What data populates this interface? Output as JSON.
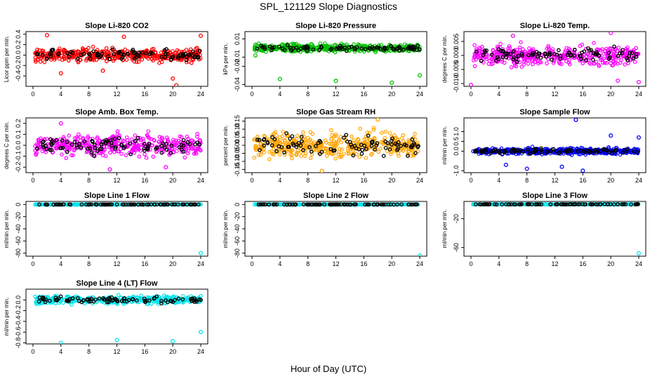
{
  "title": "SPL_121129  Slope Diagnostics",
  "xlabel": "Hour of Day (UTC)",
  "chart_data": [
    {
      "type": "scatter",
      "title": "Slope Li-820 CO2",
      "ylabel": "Licor ppm per min.",
      "yticks": [
        "-0.4",
        "-0.2",
        "0.0",
        "0.2",
        "0.4"
      ],
      "ytick_values": [
        -0.4,
        -0.2,
        0,
        0.2,
        0.4
      ],
      "ylim": [
        -0.6,
        0.45
      ],
      "xlim": [
        -1,
        25
      ],
      "xticks": [
        "0",
        "4",
        "8",
        "12",
        "16",
        "20",
        "24"
      ],
      "xtick_values": [
        0,
        4,
        8,
        12,
        16,
        20,
        24
      ],
      "color": "#ff0000",
      "spread": 0.12,
      "outliers": [
        [
          2,
          0.38
        ],
        [
          4,
          -0.35
        ],
        [
          10,
          -0.3
        ],
        [
          13,
          0.35
        ],
        [
          20,
          -0.45
        ],
        [
          24,
          0.37
        ],
        [
          20.5,
          -0.58
        ]
      ]
    },
    {
      "type": "scatter",
      "title": "Slope Li-820 Pressure",
      "ylabel": "kPa per min.",
      "yticks": [
        "-0.04",
        "-0.02",
        "-0.01",
        "0.01"
      ],
      "ytick_values": [
        -0.04,
        -0.02,
        -0.01,
        0.01
      ],
      "ylim": [
        -0.042,
        0.018
      ],
      "xlim": [
        -1,
        25
      ],
      "xticks": [
        "0",
        "4",
        "8",
        "12",
        "16",
        "20",
        "24"
      ],
      "xtick_values": [
        0,
        4,
        8,
        12,
        16,
        20,
        24
      ],
      "color": "#00c000",
      "spread": 0.004,
      "outliers": [
        [
          4,
          -0.034
        ],
        [
          12,
          -0.036
        ],
        [
          20,
          -0.038
        ],
        [
          24,
          -0.03
        ],
        [
          0.5,
          -0.008
        ]
      ]
    },
    {
      "type": "scatter",
      "title": "Slope Li-820 Temp.",
      "ylabel": "degrees C per min.",
      "yticks": [
        "-0.010",
        "-0.005",
        "0.000",
        "0.005"
      ],
      "ytick_values": [
        -0.01,
        -0.005,
        0,
        0.005
      ],
      "ylim": [
        -0.011,
        0.0085
      ],
      "xlim": [
        -1,
        25
      ],
      "xticks": [
        "0",
        "4",
        "8",
        "12",
        "16",
        "20",
        "24"
      ],
      "xtick_values": [
        0,
        4,
        8,
        12,
        16,
        20,
        24
      ],
      "color": "#ff00ff",
      "spread": 0.0032,
      "outliers": [
        [
          0,
          -0.0105
        ],
        [
          6,
          0.007
        ],
        [
          20,
          0.008
        ],
        [
          21,
          -0.009
        ],
        [
          24,
          -0.0095
        ]
      ]
    },
    {
      "type": "scatter",
      "title": "Slope Amb. Box Temp.",
      "ylabel": "degrees C per min.",
      "yticks": [
        "-0.2",
        "-0.1",
        "0.0",
        "0.1",
        "0.2"
      ],
      "ytick_values": [
        -0.2,
        -0.1,
        0,
        0.1,
        0.2
      ],
      "ylim": [
        -0.25,
        0.25
      ],
      "xlim": [
        -1,
        25
      ],
      "xticks": [
        "0",
        "4",
        "8",
        "12",
        "16",
        "20",
        "24"
      ],
      "xtick_values": [
        0,
        4,
        8,
        12,
        16,
        20,
        24
      ],
      "color": "#ff00ff",
      "spread": 0.09,
      "outliers": [
        [
          11,
          -0.22
        ],
        [
          4,
          0.2
        ],
        [
          19,
          -0.2
        ]
      ]
    },
    {
      "type": "scatter",
      "title": "Slope Gas Stream RH",
      "ylabel": "percent per min.",
      "yticks": [
        "-0.15",
        "-0.10",
        "-0.05",
        "0.00",
        "0.05",
        "0.10",
        "0.15"
      ],
      "ytick_values": [
        -0.15,
        -0.1,
        -0.05,
        0,
        0.05,
        0.1,
        0.15
      ],
      "ylim": [
        -0.17,
        0.17
      ],
      "xlim": [
        -1,
        25
      ],
      "xticks": [
        "0",
        "4",
        "8",
        "12",
        "16",
        "20",
        "24"
      ],
      "xtick_values": [
        0,
        4,
        8,
        12,
        16,
        20,
        24
      ],
      "color": "#ffa500",
      "spread": 0.075,
      "outliers": [
        [
          10,
          -0.16
        ],
        [
          18,
          0.16
        ]
      ]
    },
    {
      "type": "scatter",
      "title": "Slope Sample Flow",
      "ylabel": "ml/min per min.",
      "yticks": [
        "-1.0",
        "0.0",
        "0.5",
        "1.0"
      ],
      "ytick_values": [
        -1,
        0,
        0.5,
        1
      ],
      "ylim": [
        -1.1,
        1.7
      ],
      "xlim": [
        -1,
        25
      ],
      "xticks": [
        "0",
        "4",
        "8",
        "12",
        "16",
        "20",
        "24"
      ],
      "xtick_values": [
        0,
        4,
        8,
        12,
        16,
        20,
        24
      ],
      "color": "#0000ff",
      "spread": 0.15,
      "outliers": [
        [
          15,
          1.6
        ],
        [
          16,
          -1.0
        ],
        [
          8,
          -0.9
        ],
        [
          20,
          0.8
        ],
        [
          24,
          0.7
        ],
        [
          5,
          -0.7
        ],
        [
          13,
          -0.8
        ]
      ]
    },
    {
      "type": "scatter",
      "title": "Slope Line 1 Flow",
      "ylabel": "ml/min per min.",
      "yticks": [
        "-80",
        "-60",
        "-40",
        "-20",
        "0"
      ],
      "ytick_values": [
        -80,
        -60,
        -40,
        -20,
        0
      ],
      "ylim": [
        -85,
        5
      ],
      "xlim": [
        -1,
        25
      ],
      "xticks": [
        "0",
        "4",
        "8",
        "12",
        "16",
        "20",
        "24"
      ],
      "xtick_values": [
        0,
        4,
        8,
        12,
        16,
        20,
        24
      ],
      "color": "#00e5ee",
      "spread": 0.3,
      "outliers": [
        [
          24,
          -80
        ]
      ]
    },
    {
      "type": "scatter",
      "title": "Slope Line 2 Flow",
      "ylabel": "ml/min per min.",
      "yticks": [
        "-80",
        "-60",
        "-40",
        "-20",
        "0"
      ],
      "ytick_values": [
        -80,
        -60,
        -40,
        -20,
        0
      ],
      "ylim": [
        -85,
        5
      ],
      "xlim": [
        -1,
        25
      ],
      "xticks": [
        "0",
        "4",
        "8",
        "12",
        "16",
        "20",
        "24"
      ],
      "xtick_values": [
        0,
        4,
        8,
        12,
        16,
        20,
        24
      ],
      "color": "#00e5ee",
      "spread": 0.3,
      "outliers": [
        [
          24,
          -84
        ]
      ]
    },
    {
      "type": "scatter",
      "title": "Slope Line 3 Flow",
      "ylabel": "ml/min per min.",
      "yticks": [
        "-60",
        "-20"
      ],
      "ytick_values": [
        -60,
        -20
      ],
      "ylim": [
        -72,
        4
      ],
      "xlim": [
        -1,
        25
      ],
      "xticks": [
        "0",
        "4",
        "8",
        "12",
        "16",
        "20",
        "24"
      ],
      "xtick_values": [
        0,
        4,
        8,
        12,
        16,
        20,
        24
      ],
      "color": "#00e5ee",
      "spread": 0.3,
      "outliers": [
        [
          24,
          -68
        ]
      ]
    },
    {
      "type": "scatter",
      "title": "Slope Line 4 (LT) Flow",
      "ylabel": "ml/min per min.",
      "yticks": [
        "-0.8",
        "-0.6",
        "-0.4",
        "-0.2",
        "0.0"
      ],
      "ytick_values": [
        -0.8,
        -0.6,
        -0.4,
        -0.2,
        0
      ],
      "ylim": [
        -0.82,
        0.2
      ],
      "xlim": [
        -1,
        25
      ],
      "xticks": [
        "0",
        "4",
        "8",
        "12",
        "16",
        "20",
        "24"
      ],
      "xtick_values": [
        0,
        4,
        8,
        12,
        16,
        20,
        24
      ],
      "color": "#00e5ee",
      "spread": 0.07,
      "outliers": [
        [
          4,
          -0.8
        ],
        [
          12,
          -0.75
        ],
        [
          20,
          -0.77
        ],
        [
          24,
          -0.6
        ]
      ]
    }
  ]
}
